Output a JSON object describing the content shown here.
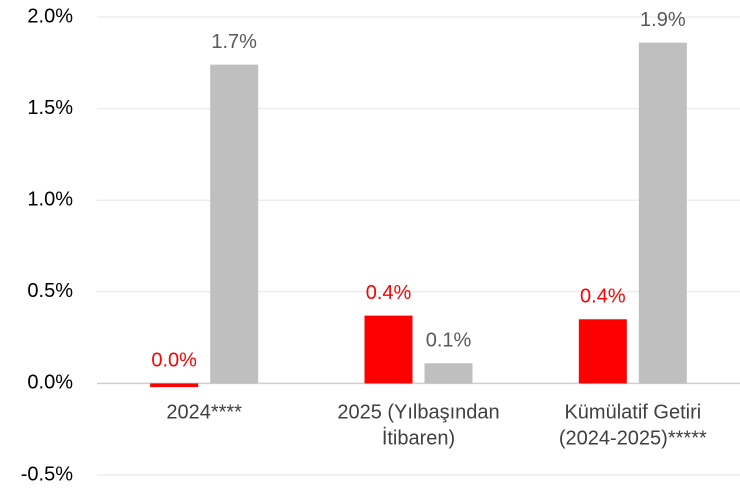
{
  "chart_data": {
    "type": "bar",
    "categories": [
      [
        "2024****"
      ],
      [
        "2025 (Yılbaşından",
        "İtibaren)"
      ],
      [
        "Kümülatif Getiri",
        "(2024-2025)*****"
      ]
    ],
    "series": [
      {
        "color": "#ff0000",
        "label_color": "#ff0000",
        "values": [
          -0.02,
          0.37,
          0.35
        ],
        "value_labels": [
          "0.0%",
          "0.4%",
          "0.4%"
        ]
      },
      {
        "color": "#bfbfbf",
        "label_color": "#595959",
        "values": [
          1.74,
          0.11,
          1.86
        ],
        "value_labels": [
          "1.7%",
          "0.1%",
          "1.9%"
        ]
      }
    ],
    "ylim": [
      -0.5,
      2.0
    ],
    "yticks": [
      {
        "value": -0.5,
        "label": "-0.5%"
      },
      {
        "value": 0.0,
        "label": "0.0%"
      },
      {
        "value": 0.5,
        "label": "0.5%"
      },
      {
        "value": 1.0,
        "label": "1.0%"
      },
      {
        "value": 1.5,
        "label": "1.5%"
      },
      {
        "value": 2.0,
        "label": "2.0%"
      }
    ],
    "grid": true
  }
}
